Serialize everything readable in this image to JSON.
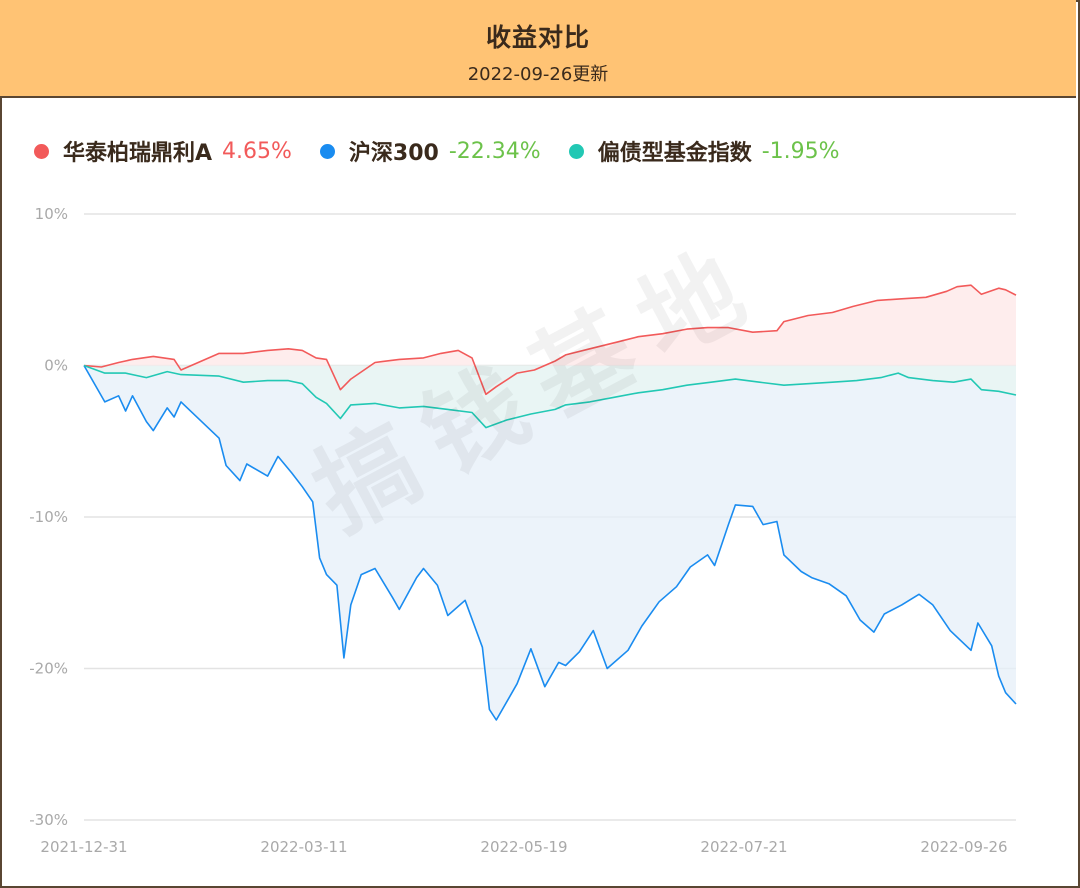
{
  "header": {
    "title": "收益对比",
    "subtitle": "2022-09-26更新"
  },
  "legend": [
    {
      "name": "华泰柏瑞鼎利A",
      "value": "4.65%",
      "color": "#f25a5a",
      "value_color": "#f25a5a"
    },
    {
      "name": "沪深300",
      "value": "-22.34%",
      "color": "#1a8cf0",
      "value_color": "#6cc24a"
    },
    {
      "name": "偏债型基金指数",
      "value": "-1.95%",
      "color": "#22c8b4",
      "value_color": "#6cc24a"
    }
  ],
  "watermark": "搞钱基地",
  "chart_data": {
    "type": "line",
    "y_ticks": [
      "10%",
      "0%",
      "-10%",
      "-20%",
      "-30%"
    ],
    "y_tick_values": [
      10,
      0,
      -10,
      -20,
      -30
    ],
    "ylim": [
      -30,
      10
    ],
    "x_tick_labels": [
      "2021-12-31",
      "2022-03-11",
      "2022-05-19",
      "2022-07-21",
      "2022-09-26"
    ],
    "x_range": [
      "2021-12-31",
      "2022-09-26"
    ],
    "grid": true,
    "series": [
      {
        "name": "华泰柏瑞鼎利A",
        "color": "#f25a5a",
        "fill": "#fde7e7",
        "points": [
          [
            "2021-12-31",
            0
          ],
          [
            "2022-01-05",
            -0.1
          ],
          [
            "2022-01-10",
            0.2
          ],
          [
            "2022-01-14",
            0.4
          ],
          [
            "2022-01-20",
            0.6
          ],
          [
            "2022-01-26",
            0.4
          ],
          [
            "2022-01-28",
            -0.3
          ],
          [
            "2022-02-08",
            0.8
          ],
          [
            "2022-02-15",
            0.8
          ],
          [
            "2022-02-22",
            1.0
          ],
          [
            "2022-02-28",
            1.1
          ],
          [
            "2022-03-04",
            1.0
          ],
          [
            "2022-03-08",
            0.5
          ],
          [
            "2022-03-11",
            0.4
          ],
          [
            "2022-03-15",
            -1.6
          ],
          [
            "2022-03-18",
            -0.9
          ],
          [
            "2022-03-25",
            0.2
          ],
          [
            "2022-04-01",
            0.4
          ],
          [
            "2022-04-08",
            0.5
          ],
          [
            "2022-04-13",
            0.8
          ],
          [
            "2022-04-18",
            1.0
          ],
          [
            "2022-04-22",
            0.5
          ],
          [
            "2022-04-26",
            -1.9
          ],
          [
            "2022-04-29",
            -1.4
          ],
          [
            "2022-05-05",
            -0.5
          ],
          [
            "2022-05-10",
            -0.3
          ],
          [
            "2022-05-16",
            0.3
          ],
          [
            "2022-05-19",
            0.7
          ],
          [
            "2022-05-26",
            1.1
          ],
          [
            "2022-06-02",
            1.5
          ],
          [
            "2022-06-09",
            1.9
          ],
          [
            "2022-06-16",
            2.1
          ],
          [
            "2022-06-23",
            2.4
          ],
          [
            "2022-06-29",
            2.5
          ],
          [
            "2022-07-05",
            2.5
          ],
          [
            "2022-07-12",
            2.2
          ],
          [
            "2022-07-19",
            2.3
          ],
          [
            "2022-07-21",
            2.9
          ],
          [
            "2022-07-28",
            3.3
          ],
          [
            "2022-08-04",
            3.5
          ],
          [
            "2022-08-10",
            3.9
          ],
          [
            "2022-08-17",
            4.3
          ],
          [
            "2022-08-24",
            4.4
          ],
          [
            "2022-08-31",
            4.5
          ],
          [
            "2022-09-06",
            4.9
          ],
          [
            "2022-09-09",
            5.2
          ],
          [
            "2022-09-13",
            5.3
          ],
          [
            "2022-09-16",
            4.7
          ],
          [
            "2022-09-21",
            5.1
          ],
          [
            "2022-09-23",
            5.0
          ],
          [
            "2022-09-26",
            4.65
          ]
        ]
      },
      {
        "name": "沪深300",
        "color": "#1a8cf0",
        "fill": "#e5eff8",
        "points": [
          [
            "2021-12-31",
            0
          ],
          [
            "2022-01-06",
            -2.4
          ],
          [
            "2022-01-10",
            -2.0
          ],
          [
            "2022-01-12",
            -3.0
          ],
          [
            "2022-01-14",
            -2.0
          ],
          [
            "2022-01-18",
            -3.7
          ],
          [
            "2022-01-20",
            -4.3
          ],
          [
            "2022-01-24",
            -2.8
          ],
          [
            "2022-01-26",
            -3.4
          ],
          [
            "2022-01-28",
            -2.4
          ],
          [
            "2022-02-08",
            -4.8
          ],
          [
            "2022-02-10",
            -6.6
          ],
          [
            "2022-02-14",
            -7.6
          ],
          [
            "2022-02-16",
            -6.5
          ],
          [
            "2022-02-22",
            -7.3
          ],
          [
            "2022-02-25",
            -6.0
          ],
          [
            "2022-03-01",
            -7.1
          ],
          [
            "2022-03-04",
            -8.0
          ],
          [
            "2022-03-07",
            -9.0
          ],
          [
            "2022-03-09",
            -12.7
          ],
          [
            "2022-03-11",
            -13.8
          ],
          [
            "2022-03-14",
            -14.5
          ],
          [
            "2022-03-16",
            -19.3
          ],
          [
            "2022-03-18",
            -15.8
          ],
          [
            "2022-03-21",
            -13.8
          ],
          [
            "2022-03-25",
            -13.4
          ],
          [
            "2022-03-30",
            -15.3
          ],
          [
            "2022-04-01",
            -16.1
          ],
          [
            "2022-04-06",
            -14.0
          ],
          [
            "2022-04-08",
            -13.4
          ],
          [
            "2022-04-12",
            -14.5
          ],
          [
            "2022-04-15",
            -16.5
          ],
          [
            "2022-04-20",
            -15.5
          ],
          [
            "2022-04-25",
            -18.6
          ],
          [
            "2022-04-27",
            -22.7
          ],
          [
            "2022-04-29",
            -23.4
          ],
          [
            "2022-05-05",
            -21.0
          ],
          [
            "2022-05-09",
            -18.7
          ],
          [
            "2022-05-13",
            -21.2
          ],
          [
            "2022-05-17",
            -19.6
          ],
          [
            "2022-05-19",
            -19.8
          ],
          [
            "2022-05-23",
            -18.9
          ],
          [
            "2022-05-27",
            -17.5
          ],
          [
            "2022-05-31",
            -20.0
          ],
          [
            "2022-06-06",
            -18.8
          ],
          [
            "2022-06-10",
            -17.2
          ],
          [
            "2022-06-15",
            -15.6
          ],
          [
            "2022-06-20",
            -14.6
          ],
          [
            "2022-06-24",
            -13.3
          ],
          [
            "2022-06-29",
            -12.5
          ],
          [
            "2022-07-01",
            -13.2
          ],
          [
            "2022-07-05",
            -10.5
          ],
          [
            "2022-07-07",
            -9.2
          ],
          [
            "2022-07-12",
            -9.3
          ],
          [
            "2022-07-15",
            -10.5
          ],
          [
            "2022-07-19",
            -10.3
          ],
          [
            "2022-07-21",
            -12.5
          ],
          [
            "2022-07-26",
            -13.6
          ],
          [
            "2022-07-29",
            -14.0
          ],
          [
            "2022-08-03",
            -14.4
          ],
          [
            "2022-08-08",
            -15.2
          ],
          [
            "2022-08-12",
            -16.8
          ],
          [
            "2022-08-16",
            -17.6
          ],
          [
            "2022-08-19",
            -16.4
          ],
          [
            "2022-08-24",
            -15.8
          ],
          [
            "2022-08-29",
            -15.1
          ],
          [
            "2022-09-02",
            -15.8
          ],
          [
            "2022-09-07",
            -17.5
          ],
          [
            "2022-09-13",
            -18.8
          ],
          [
            "2022-09-15",
            -17.0
          ],
          [
            "2022-09-19",
            -18.5
          ],
          [
            "2022-09-21",
            -20.5
          ],
          [
            "2022-09-23",
            -21.6
          ],
          [
            "2022-09-26",
            -22.34
          ]
        ]
      },
      {
        "name": "偏债型基金指数",
        "color": "#22c8b4",
        "fill": "#e8f6f2",
        "points": [
          [
            "2021-12-31",
            0
          ],
          [
            "2022-01-06",
            -0.5
          ],
          [
            "2022-01-12",
            -0.5
          ],
          [
            "2022-01-18",
            -0.8
          ],
          [
            "2022-01-24",
            -0.4
          ],
          [
            "2022-01-28",
            -0.6
          ],
          [
            "2022-02-08",
            -0.7
          ],
          [
            "2022-02-15",
            -1.1
          ],
          [
            "2022-02-22",
            -1.0
          ],
          [
            "2022-02-28",
            -1.0
          ],
          [
            "2022-03-04",
            -1.2
          ],
          [
            "2022-03-08",
            -2.1
          ],
          [
            "2022-03-11",
            -2.5
          ],
          [
            "2022-03-15",
            -3.5
          ],
          [
            "2022-03-18",
            -2.6
          ],
          [
            "2022-03-25",
            -2.5
          ],
          [
            "2022-04-01",
            -2.8
          ],
          [
            "2022-04-08",
            -2.7
          ],
          [
            "2022-04-15",
            -2.9
          ],
          [
            "2022-04-22",
            -3.1
          ],
          [
            "2022-04-26",
            -4.1
          ],
          [
            "2022-05-02",
            -3.6
          ],
          [
            "2022-05-09",
            -3.2
          ],
          [
            "2022-05-16",
            -2.9
          ],
          [
            "2022-05-19",
            -2.6
          ],
          [
            "2022-05-26",
            -2.4
          ],
          [
            "2022-06-02",
            -2.1
          ],
          [
            "2022-06-09",
            -1.8
          ],
          [
            "2022-06-16",
            -1.6
          ],
          [
            "2022-06-23",
            -1.3
          ],
          [
            "2022-06-30",
            -1.1
          ],
          [
            "2022-07-07",
            -0.9
          ],
          [
            "2022-07-14",
            -1.1
          ],
          [
            "2022-07-21",
            -1.3
          ],
          [
            "2022-07-28",
            -1.2
          ],
          [
            "2022-08-04",
            -1.1
          ],
          [
            "2022-08-11",
            -1.0
          ],
          [
            "2022-08-18",
            -0.8
          ],
          [
            "2022-08-23",
            -0.5
          ],
          [
            "2022-08-26",
            -0.8
          ],
          [
            "2022-09-02",
            -1.0
          ],
          [
            "2022-09-08",
            -1.1
          ],
          [
            "2022-09-13",
            -0.9
          ],
          [
            "2022-09-16",
            -1.6
          ],
          [
            "2022-09-21",
            -1.7
          ],
          [
            "2022-09-26",
            -1.95
          ]
        ]
      }
    ]
  }
}
